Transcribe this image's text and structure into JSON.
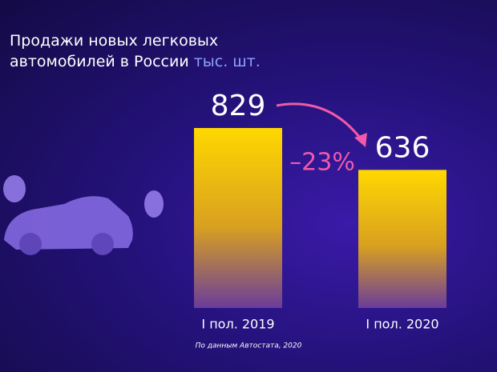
{
  "chart_data": {
    "type": "bar",
    "title": "Продажи новых легковых автомобилей в России",
    "unit": "тыс. шт.",
    "categories": [
      "I пол. 2019",
      "I пол. 2020"
    ],
    "values": [
      829,
      636
    ],
    "color": "#ffd800",
    "annotation": "–23%",
    "source": "По данным Автостата, 2020"
  }
}
